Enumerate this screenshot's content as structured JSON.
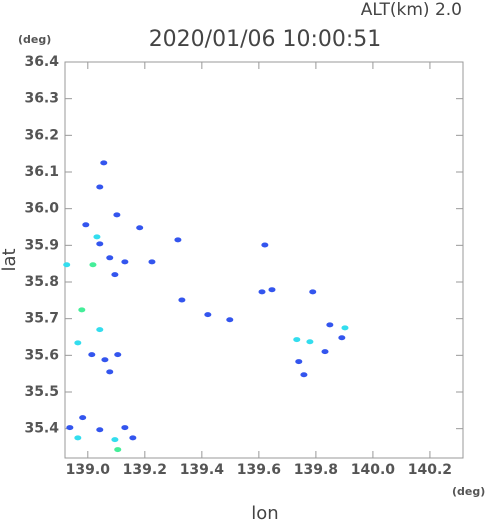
{
  "chart_data": {
    "type": "scatter",
    "title": "2020/01/06 10:00:51",
    "subtitle": "ALT(km) 2.0",
    "y_unit": "(deg)",
    "x_unit": "(deg)",
    "x_label": "lon",
    "y_label": "lat",
    "xlim": [
      138.92,
      140.316
    ],
    "ylim": [
      35.32,
      36.4
    ],
    "xticks": [
      {
        "value": 139,
        "label": "139.0"
      },
      139.2,
      139.4,
      139.6,
      139.8,
      {
        "value": 140,
        "label": "140.0"
      },
      140.2
    ],
    "yticks": [
      35.4,
      35.5,
      35.6,
      35.7,
      35.8,
      35.9,
      {
        "value": 36,
        "label": "36.0"
      },
      36.1,
      36.2,
      36.3,
      36.4
    ],
    "x": [
      139.056,
      139.042,
      139.102,
      138.993,
      139.032,
      139.042,
      139.018,
      139.077,
      139.095,
      139.13,
      138.926,
      138.979,
      139.042,
      138.965,
      139.014,
      139.06,
      139.077,
      139.105,
      138.982,
      138.937,
      138.965,
      139.042,
      139.095,
      139.13,
      139.105,
      139.158,
      139.182,
      139.225,
      139.316,
      139.33,
      139.421,
      139.498,
      139.621,
      139.611,
      139.646,
      139.789,
      139.733,
      139.779,
      139.74,
      139.758,
      139.849,
      139.902,
      139.832,
      139.891
    ],
    "values": [
      36.125,
      36.059,
      35.983,
      35.956,
      35.923,
      35.904,
      35.847,
      35.866,
      35.82,
      35.855,
      35.847,
      35.724,
      35.67,
      35.634,
      35.602,
      35.588,
      35.555,
      35.602,
      35.43,
      35.403,
      35.375,
      35.397,
      35.37,
      35.403,
      35.343,
      35.375,
      35.948,
      35.855,
      35.915,
      35.751,
      35.711,
      35.697,
      35.901,
      35.773,
      35.779,
      35.773,
      35.643,
      35.637,
      35.583,
      35.547,
      35.683,
      35.675,
      35.61,
      35.648
    ],
    "colors": [
      "#3355ee",
      "#3355ee",
      "#3355ee",
      "#3355ee",
      "#33ddee",
      "#3355ee",
      "#44ee99",
      "#3355ee",
      "#3355ee",
      "#3355ee",
      "#33ddee",
      "#44ee99",
      "#33ddee",
      "#33ddee",
      "#3355ee",
      "#3355ee",
      "#3355ee",
      "#3355ee",
      "#3355ee",
      "#3355ee",
      "#33ddee",
      "#3355ee",
      "#33ddee",
      "#3355ee",
      "#44ee99",
      "#3355ee",
      "#3355ee",
      "#3355ee",
      "#3355ee",
      "#3355ee",
      "#3355ee",
      "#3355ee",
      "#3355ee",
      "#3355ee",
      "#3355ee",
      "#3355ee",
      "#33ddee",
      "#33ddee",
      "#3355ee",
      "#3355ee",
      "#3355ee",
      "#33ddee",
      "#3355ee",
      "#3355ee"
    ]
  }
}
